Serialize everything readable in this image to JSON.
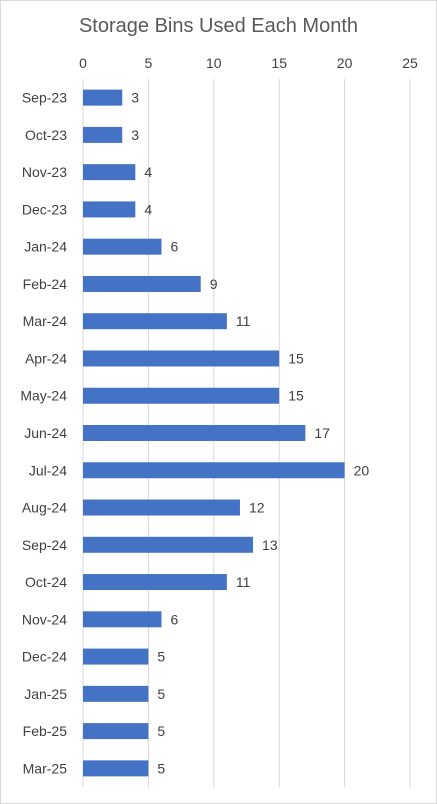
{
  "chart_data": {
    "type": "bar",
    "orientation": "horizontal",
    "title": "Storage Bins Used Each Month",
    "xlabel": "",
    "ylabel": "",
    "xlim": [
      0,
      25
    ],
    "x_ticks": [
      "0",
      "5",
      "10",
      "15",
      "20",
      "25"
    ],
    "x_axis_position": "top",
    "grid": true,
    "legend": "none",
    "categories": [
      "Sep-23",
      "Oct-23",
      "Nov-23",
      "Dec-23",
      "Jan-24",
      "Feb-24",
      "Mar-24",
      "Apr-24",
      "May-24",
      "Jun-24",
      "Jul-24",
      "Aug-24",
      "Sep-24",
      "Oct-24",
      "Nov-24",
      "Dec-24",
      "Jan-25",
      "Feb-25",
      "Mar-25"
    ],
    "values": [
      3,
      3,
      4,
      4,
      6,
      9,
      11,
      15,
      15,
      17,
      20,
      12,
      13,
      11,
      6,
      5,
      5,
      5,
      5
    ],
    "bar_color": "#4472c4",
    "text_color": "#404040",
    "grid_color": "#d9d9d9"
  }
}
